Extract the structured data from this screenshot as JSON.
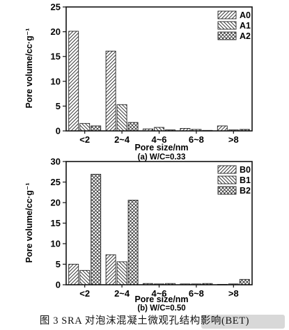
{
  "charts": [
    {
      "type": "bar",
      "categories": [
        "<2",
        "2~4",
        "4~6",
        "6~8",
        ">8"
      ],
      "series": [
        {
          "name": "A0",
          "values": [
            20.1,
            16.1,
            0.4,
            0.5,
            1.0
          ]
        },
        {
          "name": "A1",
          "values": [
            1.5,
            5.3,
            0.7,
            0.3,
            0.2
          ]
        },
        {
          "name": "A2",
          "values": [
            1.0,
            1.7,
            0.2,
            0.1,
            0.3
          ]
        }
      ],
      "ylim": [
        0,
        25
      ],
      "yticks": [
        0,
        5,
        10,
        15,
        20,
        25
      ],
      "ylabel": "Pore volume/cc·g⁻¹",
      "xlabel": "Pore size/nm",
      "subtitle": "(a) W/C=0.33",
      "legend_position": "top-right"
    },
    {
      "type": "bar",
      "categories": [
        "<2",
        "2~4",
        "4~6",
        "6~8",
        ">8"
      ],
      "series": [
        {
          "name": "B0",
          "values": [
            5.0,
            7.3,
            0.3,
            0.2,
            0.1
          ]
        },
        {
          "name": "B1",
          "values": [
            3.5,
            5.6,
            0.2,
            0.2,
            0.2
          ]
        },
        {
          "name": "B2",
          "values": [
            26.9,
            20.6,
            0.3,
            0.3,
            1.3
          ]
        }
      ],
      "ylim": [
        0,
        30
      ],
      "yticks": [
        0,
        5,
        10,
        15,
        20,
        25,
        30
      ],
      "ylabel": "Pore volume/cc·g⁻¹",
      "xlabel": "Pore size/nm",
      "subtitle": "(b) W/C=0.50",
      "legend_position": "top-right"
    }
  ],
  "caption": "图 3   SRA 对泡沫混凝土微观孔结构影响(BET)"
}
